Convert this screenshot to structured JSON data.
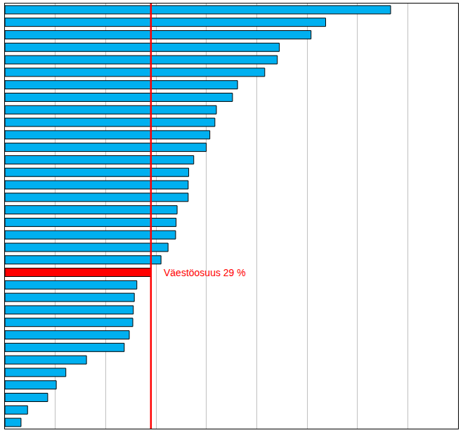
{
  "chart_data": {
    "type": "bar",
    "orientation": "horizontal",
    "categories": [
      null,
      null,
      null,
      null,
      null,
      null,
      null,
      null,
      null,
      null,
      null,
      null,
      null,
      null,
      null,
      null,
      null,
      null,
      null,
      null,
      null,
      null,
      null,
      null,
      null,
      null,
      null,
      null,
      null,
      null,
      null,
      null,
      null,
      null
    ],
    "values": [
      76.6,
      63.7,
      60.8,
      54.5,
      54.1,
      51.6,
      46.2,
      45.2,
      42.0,
      41.7,
      40.7,
      40.0,
      37.5,
      36.5,
      36.4,
      36.4,
      34.2,
      34.0,
      33.9,
      32.4,
      31.0,
      29,
      26.2,
      25.7,
      25.5,
      25.4,
      24.7,
      23.7,
      16.2,
      12.1,
      10.2,
      8.5,
      4.5,
      3.2
    ],
    "colors": [
      "#00b0f0",
      "#00b0f0",
      "#00b0f0",
      "#00b0f0",
      "#00b0f0",
      "#00b0f0",
      "#00b0f0",
      "#00b0f0",
      "#00b0f0",
      "#00b0f0",
      "#00b0f0",
      "#00b0f0",
      "#00b0f0",
      "#00b0f0",
      "#00b0f0",
      "#00b0f0",
      "#00b0f0",
      "#00b0f0",
      "#00b0f0",
      "#00b0f0",
      "#00b0f0",
      "#ff0000",
      "#00b0f0",
      "#00b0f0",
      "#00b0f0",
      "#00b0f0",
      "#00b0f0",
      "#00b0f0",
      "#00b0f0",
      "#00b0f0",
      "#00b0f0",
      "#00b0f0",
      "#00b0f0",
      "#00b0f0"
    ],
    "xlim": [
      0,
      90
    ],
    "xticks": [
      0,
      10,
      20,
      30,
      40,
      50,
      60,
      70,
      80,
      90
    ],
    "grid": true,
    "tick_labels": false,
    "annotations": [
      {
        "text": "Väestöosuus 29 %",
        "x": 29,
        "color": "#ff0000"
      }
    ]
  }
}
